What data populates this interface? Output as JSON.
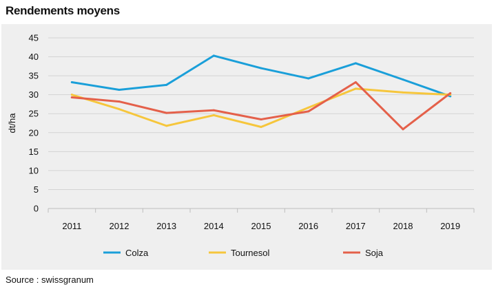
{
  "title": "Rendements moyens",
  "source": "Source : swissgranum",
  "chart_data": {
    "type": "line",
    "title": "Rendements moyens",
    "xlabel": "",
    "ylabel": "dt/ha",
    "ylim": [
      0,
      45
    ],
    "yticks": [
      0,
      5,
      10,
      15,
      20,
      25,
      30,
      35,
      40,
      45
    ],
    "grid": "horizontal",
    "legend": "bottom",
    "categories": [
      "2011",
      "2012",
      "2013",
      "2014",
      "2015",
      "2016",
      "2017",
      "2018",
      "2019"
    ],
    "series": [
      {
        "name": "Colza",
        "color": "#1a9fd9",
        "values": [
          33.3,
          31.3,
          32.6,
          40.3,
          37.0,
          34.3,
          38.3,
          34.0,
          29.6
        ]
      },
      {
        "name": "Tournesol",
        "color": "#f6c63c",
        "values": [
          30.0,
          26.2,
          21.8,
          24.6,
          21.5,
          26.6,
          31.6,
          30.6,
          30.0
        ]
      },
      {
        "name": "Soja",
        "color": "#e4604a",
        "values": [
          29.3,
          28.2,
          25.2,
          25.9,
          23.5,
          25.6,
          33.3,
          20.9,
          30.4
        ]
      }
    ]
  }
}
